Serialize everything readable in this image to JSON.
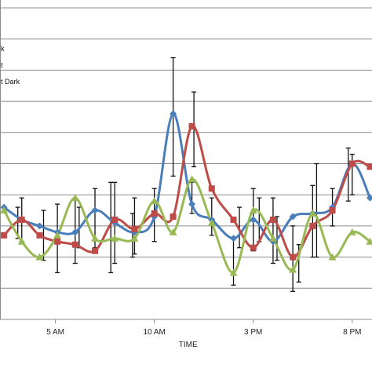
{
  "chart_data": {
    "type": "line",
    "xlabel": "TIME",
    "x_ticks": [
      {
        "label": "5 AM",
        "x": 5
      },
      {
        "label": "10 AM",
        "x": 10
      },
      {
        "label": "3 PM",
        "x": 15
      },
      {
        "label": "8 PM",
        "x": 20
      }
    ],
    "xlim": [
      2.2,
      21.0
    ],
    "ylim": [
      0,
      10
    ],
    "grid": "horizontal",
    "legend": {
      "placement": "top-left",
      "entries": [
        {
          "text": "k",
          "color": "#4A7EBB"
        },
        {
          "text": "t",
          "color": "#BE4B48"
        },
        {
          "text": "t Dark",
          "color": "#98B954"
        }
      ]
    },
    "series": [
      {
        "color": "#4A7EBB",
        "marker": "diamond",
        "points": [
          {
            "x": 2.4,
            "y": 3.6
          },
          {
            "x": 3.3,
            "y": 3.2
          },
          {
            "x": 4.2,
            "y": 3.0
          },
          {
            "x": 5.1,
            "y": 2.8
          },
          {
            "x": 6.0,
            "y": 2.8
          },
          {
            "x": 7.0,
            "y": 3.5
          },
          {
            "x": 8.0,
            "y": 3.1
          },
          {
            "x": 9.0,
            "y": 2.8
          },
          {
            "x": 10.0,
            "y": 3.3
          },
          {
            "x": 10.95,
            "y": 6.6
          },
          {
            "x": 11.9,
            "y": 3.7
          },
          {
            "x": 12.9,
            "y": 3.2
          },
          {
            "x": 14.0,
            "y": 2.6
          },
          {
            "x": 15.0,
            "y": 3.2
          },
          {
            "x": 16.0,
            "y": 2.5
          },
          {
            "x": 17.0,
            "y": 3.3
          },
          {
            "x": 18.0,
            "y": 3.4
          },
          {
            "x": 19.0,
            "y": 3.6
          },
          {
            "x": 20.0,
            "y": 5.0
          },
          {
            "x": 20.9,
            "y": 3.9
          }
        ]
      },
      {
        "color": "#BE4B48",
        "marker": "square",
        "points": [
          {
            "x": 2.4,
            "y": 2.7
          },
          {
            "x": 3.3,
            "y": 3.2
          },
          {
            "x": 4.2,
            "y": 2.7
          },
          {
            "x": 5.1,
            "y": 2.5
          },
          {
            "x": 6.0,
            "y": 2.4
          },
          {
            "x": 7.0,
            "y": 2.2
          },
          {
            "x": 8.0,
            "y": 3.2
          },
          {
            "x": 9.0,
            "y": 2.9
          },
          {
            "x": 10.0,
            "y": 3.4
          },
          {
            "x": 10.95,
            "y": 3.3
          },
          {
            "x": 11.9,
            "y": 6.2
          },
          {
            "x": 12.9,
            "y": 4.2
          },
          {
            "x": 14.0,
            "y": 3.2
          },
          {
            "x": 15.0,
            "y": 2.3
          },
          {
            "x": 16.0,
            "y": 3.2
          },
          {
            "x": 17.0,
            "y": 2.0
          },
          {
            "x": 18.0,
            "y": 3.0
          },
          {
            "x": 19.0,
            "y": 3.5
          },
          {
            "x": 20.0,
            "y": 5.0
          },
          {
            "x": 20.9,
            "y": 4.9
          }
        ]
      },
      {
        "color": "#98B954",
        "marker": "triangle",
        "points": [
          {
            "x": 2.4,
            "y": 3.5
          },
          {
            "x": 3.3,
            "y": 2.5
          },
          {
            "x": 4.2,
            "y": 2.0
          },
          {
            "x": 5.1,
            "y": 2.7
          },
          {
            "x": 6.0,
            "y": 3.9
          },
          {
            "x": 7.0,
            "y": 2.6
          },
          {
            "x": 8.0,
            "y": 2.6
          },
          {
            "x": 9.0,
            "y": 2.6
          },
          {
            "x": 10.0,
            "y": 3.8
          },
          {
            "x": 10.95,
            "y": 2.8
          },
          {
            "x": 11.9,
            "y": 4.5
          },
          {
            "x": 12.9,
            "y": 3.1
          },
          {
            "x": 14.0,
            "y": 1.5
          },
          {
            "x": 15.0,
            "y": 3.5
          },
          {
            "x": 16.0,
            "y": 2.6
          },
          {
            "x": 17.0,
            "y": 1.6
          },
          {
            "x": 18.0,
            "y": 3.4
          },
          {
            "x": 19.0,
            "y": 2.0
          },
          {
            "x": 20.0,
            "y": 2.8
          },
          {
            "x": 20.9,
            "y": 2.5
          }
        ]
      }
    ],
    "error_bars": [
      {
        "x": 3.1,
        "lo": 2.6,
        "hi": 3.6
      },
      {
        "x": 3.3,
        "lo": 2.5,
        "hi": 3.9
      },
      {
        "x": 4.4,
        "lo": 1.9,
        "hi": 3.5
      },
      {
        "x": 5.1,
        "lo": 1.5,
        "hi": 3.7
      },
      {
        "x": 6.0,
        "lo": 1.8,
        "hi": 3.9
      },
      {
        "x": 6.2,
        "lo": 2.3,
        "hi": 3.6
      },
      {
        "x": 7.0,
        "lo": 2.3,
        "hi": 4.2
      },
      {
        "x": 7.8,
        "lo": 1.5,
        "hi": 4.4
      },
      {
        "x": 8.0,
        "lo": 1.8,
        "hi": 4.4
      },
      {
        "x": 8.9,
        "lo": 2.0,
        "hi": 3.4
      },
      {
        "x": 9.0,
        "lo": 2.1,
        "hi": 3.9
      },
      {
        "x": 10.0,
        "lo": 2.5,
        "hi": 4.2
      },
      {
        "x": 10.95,
        "lo": 4.6,
        "hi": 8.4
      },
      {
        "x": 11.9,
        "lo": 3.4,
        "hi": 4.4
      },
      {
        "x": 12.0,
        "lo": 4.9,
        "hi": 7.3
      },
      {
        "x": 12.9,
        "lo": 2.7,
        "hi": 3.9
      },
      {
        "x": 14.0,
        "lo": 1.1,
        "hi": 2.6
      },
      {
        "x": 14.3,
        "lo": 2.3,
        "hi": 3.6
      },
      {
        "x": 15.0,
        "lo": 2.2,
        "hi": 4.2
      },
      {
        "x": 15.3,
        "lo": 2.5,
        "hi": 3.9
      },
      {
        "x": 16.0,
        "lo": 1.8,
        "hi": 3.9
      },
      {
        "x": 16.2,
        "lo": 1.9,
        "hi": 3.3
      },
      {
        "x": 17.0,
        "lo": 0.9,
        "hi": 3.0
      },
      {
        "x": 17.3,
        "lo": 1.2,
        "hi": 2.4
      },
      {
        "x": 18.0,
        "lo": 2.0,
        "hi": 4.3
      },
      {
        "x": 18.2,
        "lo": 2.0,
        "hi": 5.0
      },
      {
        "x": 19.0,
        "lo": 3.0,
        "hi": 4.2
      },
      {
        "x": 19.8,
        "lo": 3.8,
        "hi": 5.5
      },
      {
        "x": 20.0,
        "lo": 4.0,
        "hi": 5.3
      }
    ]
  }
}
